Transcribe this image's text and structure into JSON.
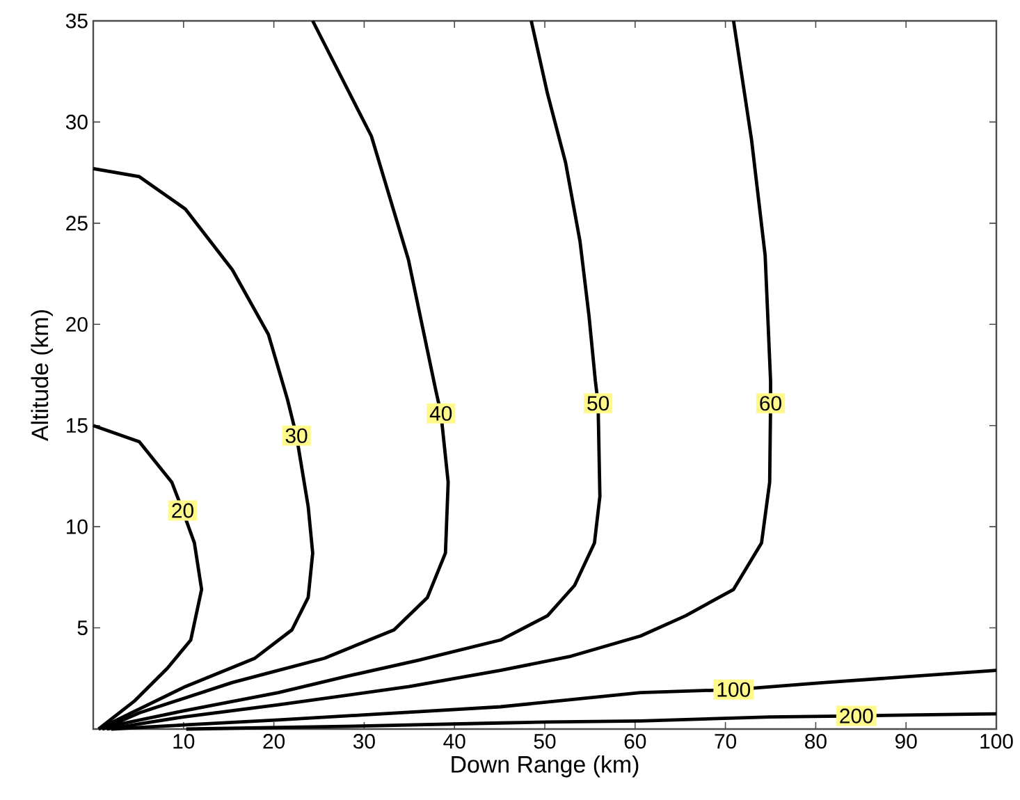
{
  "chart_data": {
    "type": "line",
    "xlabel": "Down Range (km)",
    "ylabel": "Altitude (km)",
    "xlim": [
      0,
      100
    ],
    "ylim": [
      0,
      35
    ],
    "xticks": [
      10,
      20,
      30,
      40,
      50,
      60,
      70,
      80,
      90,
      100
    ],
    "yticks": [
      5,
      10,
      15,
      20,
      25,
      30,
      35
    ],
    "marker": "none",
    "line_style": "solid",
    "series": [
      {
        "name": "20",
        "color": "#000000",
        "x": [
          0,
          5.1,
          8.7,
          9.9,
          11.2,
          12,
          10.8,
          8.2,
          4.6,
          0.6
        ],
        "values": [
          15,
          14.2,
          12.2,
          10.8,
          9.2,
          6.9,
          4.4,
          3,
          1.4,
          0
        ]
      },
      {
        "name": "30",
        "color": "#000000",
        "x": [
          0,
          5.1,
          10.2,
          15.4,
          19.4,
          21.5,
          22.5,
          23.8,
          24.3,
          23.8,
          22,
          17.9,
          10.2,
          4,
          0.6
        ],
        "values": [
          27.7,
          27.3,
          25.7,
          22.7,
          19.5,
          16.3,
          14.5,
          11,
          8.7,
          6.5,
          4.9,
          3.5,
          2.1,
          0.75,
          0
        ]
      },
      {
        "name": "40",
        "color": "#000000",
        "x": [
          24.3,
          30.8,
          34.9,
          37.9,
          38.5,
          39.3,
          39,
          37,
          33.3,
          25.6,
          20.5,
          15.4,
          5.1,
          1
        ],
        "values": [
          35,
          29.3,
          23.2,
          16.8,
          15.6,
          12.2,
          8.7,
          6.5,
          4.9,
          3.5,
          2.9,
          2.3,
          0.8,
          0
        ]
      },
      {
        "name": "50",
        "color": "#000000",
        "x": [
          48.5,
          50.3,
          52.3,
          53.9,
          54.9,
          55.6,
          55.9,
          56.1,
          55.5,
          53.3,
          50.3,
          45.1,
          36,
          28,
          20.5,
          10,
          3,
          1
        ],
        "values": [
          35,
          31.4,
          28,
          24.1,
          20.4,
          17.2,
          16.1,
          11.5,
          9.2,
          7.1,
          5.6,
          4.4,
          3.4,
          2.6,
          1.8,
          0.9,
          0.25,
          0
        ]
      },
      {
        "name": "60",
        "color": "#000000",
        "x": [
          70.9,
          72.9,
          74.4,
          75,
          75,
          74.9,
          74,
          70.9,
          65.6,
          60.6,
          52.9,
          45.1,
          35,
          20.5,
          10,
          1.5
        ],
        "values": [
          35,
          29.1,
          23.4,
          17.2,
          16.1,
          12.2,
          9.2,
          6.9,
          5.6,
          4.6,
          3.6,
          2.9,
          2.1,
          1.2,
          0.6,
          0
        ]
      },
      {
        "name": "100",
        "color": "#000000",
        "x": [
          2,
          10,
          20.5,
          30,
          45.1,
          60.6,
          70.9,
          81,
          100
        ],
        "values": [
          0,
          0.2,
          0.45,
          0.7,
          1.1,
          1.8,
          1.95,
          2.3,
          2.9
        ]
      },
      {
        "name": "200",
        "color": "#000000",
        "x": [
          10.3,
          29.7,
          45.1,
          50.3,
          60.6,
          74.9,
          84.5,
          91.4,
          100
        ],
        "values": [
          0,
          0.15,
          0.3,
          0.35,
          0.4,
          0.6,
          0.65,
          0.7,
          0.75
        ]
      }
    ]
  }
}
